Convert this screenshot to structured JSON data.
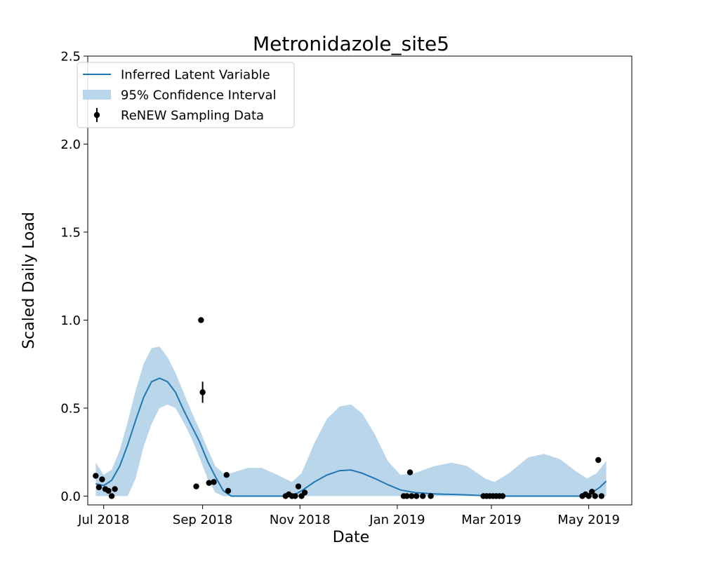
{
  "chart_data": {
    "type": "line",
    "title": "Metronidazole_site5",
    "xlabel": "Date",
    "ylabel": "Scaled Daily Load",
    "xlim": [
      "2018-06-21",
      "2019-05-28"
    ],
    "ylim": [
      -0.05,
      2.5
    ],
    "x_ticks": [
      {
        "date": "2018-07-01",
        "label": "Jul 2018"
      },
      {
        "date": "2018-09-01",
        "label": "Sep 2018"
      },
      {
        "date": "2018-11-01",
        "label": "Nov 2018"
      },
      {
        "date": "2019-01-01",
        "label": "Jan 2019"
      },
      {
        "date": "2019-03-01",
        "label": "Mar 2019"
      },
      {
        "date": "2019-05-01",
        "label": "May 2019"
      }
    ],
    "y_ticks": [
      {
        "value": 0.0,
        "label": "0.0"
      },
      {
        "value": 0.5,
        "label": "0.5"
      },
      {
        "value": 1.0,
        "label": "1.0"
      },
      {
        "value": 1.5,
        "label": "1.5"
      },
      {
        "value": 2.0,
        "label": "2.0"
      },
      {
        "value": 2.5,
        "label": "2.5"
      }
    ],
    "grid": false,
    "legend_position": "top-left",
    "colors": {
      "line": "#1f77b4",
      "band": "#bad6ea",
      "points": "#000000"
    },
    "series": [
      {
        "name": "Inferred Latent Variable",
        "kind": "line",
        "points": [
          [
            "2018-06-26",
            0.07
          ],
          [
            "2018-07-01",
            0.06
          ],
          [
            "2018-07-06",
            0.09
          ],
          [
            "2018-07-11",
            0.17
          ],
          [
            "2018-07-16",
            0.29
          ],
          [
            "2018-07-21",
            0.43
          ],
          [
            "2018-07-26",
            0.56
          ],
          [
            "2018-07-31",
            0.65
          ],
          [
            "2018-08-05",
            0.67
          ],
          [
            "2018-08-10",
            0.65
          ],
          [
            "2018-08-15",
            0.59
          ],
          [
            "2018-08-20",
            0.49
          ],
          [
            "2018-08-25",
            0.4
          ],
          [
            "2018-08-30",
            0.31
          ],
          [
            "2018-09-04",
            0.2
          ],
          [
            "2018-09-09",
            0.11
          ],
          [
            "2018-09-14",
            0.03
          ],
          [
            "2018-09-19",
            0.0
          ],
          [
            "2018-10-01",
            0.0
          ],
          [
            "2018-10-15",
            0.0
          ],
          [
            "2018-10-27",
            0.0
          ],
          [
            "2018-11-02",
            0.03
          ],
          [
            "2018-11-10",
            0.08
          ],
          [
            "2018-11-18",
            0.12
          ],
          [
            "2018-11-26",
            0.145
          ],
          [
            "2018-12-03",
            0.148
          ],
          [
            "2018-12-10",
            0.13
          ],
          [
            "2018-12-18",
            0.1
          ],
          [
            "2018-12-26",
            0.065
          ],
          [
            "2019-01-03",
            0.035
          ],
          [
            "2019-01-12",
            0.02
          ],
          [
            "2019-01-25",
            0.012
          ],
          [
            "2019-02-10",
            0.008
          ],
          [
            "2019-02-24",
            0.003
          ],
          [
            "2019-03-10",
            0.0
          ],
          [
            "2019-03-25",
            0.0
          ],
          [
            "2019-04-10",
            0.0
          ],
          [
            "2019-04-27",
            0.0
          ],
          [
            "2019-05-03",
            0.02
          ],
          [
            "2019-05-08",
            0.05
          ],
          [
            "2019-05-12",
            0.085
          ]
        ]
      },
      {
        "name": "95% Confidence Interval",
        "kind": "band",
        "points": [
          [
            "2018-06-26",
            0.0,
            0.19
          ],
          [
            "2018-07-01",
            0.0,
            0.12
          ],
          [
            "2018-07-06",
            0.0,
            0.15
          ],
          [
            "2018-07-11",
            0.0,
            0.26
          ],
          [
            "2018-07-16",
            0.0,
            0.42
          ],
          [
            "2018-07-21",
            0.1,
            0.6
          ],
          [
            "2018-07-26",
            0.28,
            0.75
          ],
          [
            "2018-07-31",
            0.41,
            0.84
          ],
          [
            "2018-08-05",
            0.5,
            0.85
          ],
          [
            "2018-08-10",
            0.52,
            0.79
          ],
          [
            "2018-08-15",
            0.5,
            0.7
          ],
          [
            "2018-08-20",
            0.42,
            0.59
          ],
          [
            "2018-08-25",
            0.33,
            0.48
          ],
          [
            "2018-08-30",
            0.22,
            0.38
          ],
          [
            "2018-09-04",
            0.1,
            0.27
          ],
          [
            "2018-09-09",
            0.02,
            0.17
          ],
          [
            "2018-09-14",
            0.0,
            0.13
          ],
          [
            "2018-09-19",
            0.0,
            0.13
          ],
          [
            "2018-09-29",
            0.0,
            0.16
          ],
          [
            "2018-10-08",
            0.0,
            0.16
          ],
          [
            "2018-10-18",
            0.0,
            0.12
          ],
          [
            "2018-10-27",
            0.0,
            0.08
          ],
          [
            "2018-11-02",
            0.0,
            0.13
          ],
          [
            "2018-11-10",
            0.0,
            0.3
          ],
          [
            "2018-11-18",
            0.0,
            0.44
          ],
          [
            "2018-11-26",
            0.0,
            0.51
          ],
          [
            "2018-12-03",
            0.0,
            0.52
          ],
          [
            "2018-12-10",
            0.0,
            0.47
          ],
          [
            "2018-12-18",
            0.0,
            0.35
          ],
          [
            "2018-12-26",
            0.0,
            0.2
          ],
          [
            "2019-01-03",
            0.0,
            0.12
          ],
          [
            "2019-01-12",
            0.0,
            0.13
          ],
          [
            "2019-01-24",
            0.0,
            0.17
          ],
          [
            "2019-02-04",
            0.0,
            0.19
          ],
          [
            "2019-02-14",
            0.0,
            0.17
          ],
          [
            "2019-02-25",
            0.0,
            0.1
          ],
          [
            "2019-03-03",
            0.0,
            0.08
          ],
          [
            "2019-03-12",
            0.0,
            0.13
          ],
          [
            "2019-03-24",
            0.0,
            0.22
          ],
          [
            "2019-04-03",
            0.0,
            0.24
          ],
          [
            "2019-04-13",
            0.0,
            0.21
          ],
          [
            "2019-04-23",
            0.0,
            0.14
          ],
          [
            "2019-04-30",
            0.0,
            0.1
          ],
          [
            "2019-05-06",
            0.0,
            0.13
          ],
          [
            "2019-05-12",
            0.0,
            0.2
          ]
        ]
      },
      {
        "name": "ReNEW Sampling Data",
        "kind": "points",
        "points": [
          {
            "x": "2018-06-26",
            "y": 0.115
          },
          {
            "x": "2018-06-28",
            "y": 0.05
          },
          {
            "x": "2018-06-30",
            "y": 0.095
          },
          {
            "x": "2018-07-02",
            "y": 0.04
          },
          {
            "x": "2018-07-04",
            "y": 0.03
          },
          {
            "x": "2018-07-06",
            "y": 0.0
          },
          {
            "x": "2018-07-08",
            "y": 0.04
          },
          {
            "x": "2018-08-28",
            "y": 0.055
          },
          {
            "x": "2018-08-31",
            "y": 1.0
          },
          {
            "x": "2018-09-01",
            "y": 0.59,
            "err": 0.06
          },
          {
            "x": "2018-09-05",
            "y": 0.075
          },
          {
            "x": "2018-09-08",
            "y": 0.08
          },
          {
            "x": "2018-09-16",
            "y": 0.12
          },
          {
            "x": "2018-09-17",
            "y": 0.03
          },
          {
            "x": "2018-10-23",
            "y": 0.0
          },
          {
            "x": "2018-10-25",
            "y": 0.01
          },
          {
            "x": "2018-10-27",
            "y": 0.0
          },
          {
            "x": "2018-10-29",
            "y": 0.0
          },
          {
            "x": "2018-10-31",
            "y": 0.055
          },
          {
            "x": "2018-11-02",
            "y": 0.0
          },
          {
            "x": "2018-11-04",
            "y": 0.02
          },
          {
            "x": "2019-01-05",
            "y": 0.0
          },
          {
            "x": "2019-01-07",
            "y": 0.0
          },
          {
            "x": "2019-01-09",
            "y": 0.135
          },
          {
            "x": "2019-01-10",
            "y": 0.0
          },
          {
            "x": "2019-01-13",
            "y": 0.0
          },
          {
            "x": "2019-01-17",
            "y": 0.0
          },
          {
            "x": "2019-01-22",
            "y": 0.0
          },
          {
            "x": "2019-02-24",
            "y": 0.0
          },
          {
            "x": "2019-02-26",
            "y": 0.0
          },
          {
            "x": "2019-02-28",
            "y": 0.0
          },
          {
            "x": "2019-03-02",
            "y": 0.0
          },
          {
            "x": "2019-03-04",
            "y": 0.0
          },
          {
            "x": "2019-03-06",
            "y": 0.0
          },
          {
            "x": "2019-03-08",
            "y": 0.0
          },
          {
            "x": "2019-04-27",
            "y": 0.0
          },
          {
            "x": "2019-04-29",
            "y": 0.01
          },
          {
            "x": "2019-05-01",
            "y": 0.0
          },
          {
            "x": "2019-05-03",
            "y": 0.025
          },
          {
            "x": "2019-05-05",
            "y": 0.0
          },
          {
            "x": "2019-05-07",
            "y": 0.205
          },
          {
            "x": "2019-05-09",
            "y": 0.0
          }
        ]
      }
    ]
  }
}
